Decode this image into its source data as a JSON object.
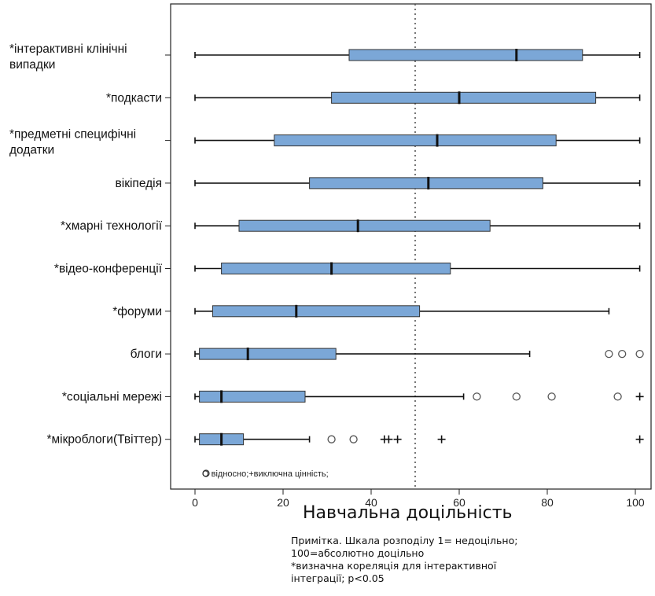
{
  "chart_data": {
    "type": "boxplot",
    "orientation": "horizontal",
    "xlabel": "Навчальна доцільність",
    "xlim": [
      -5,
      104
    ],
    "xticks": [
      0,
      20,
      40,
      60,
      80,
      100
    ],
    "xtick_labels": [
      "0",
      "20",
      "40",
      "60",
      "80",
      "100"
    ],
    "reference_line": {
      "x": 50,
      "style": "dotted"
    },
    "box_color": "#7ba7d7",
    "box_edge_color": "#333333",
    "legend_note": "O відносно;+виключна цінність;",
    "categories": [
      {
        "label_lines": [
          "*інтерактивні клінічні",
          "випадки"
        ],
        "min": 0,
        "q1": 35,
        "median": 73,
        "q3": 88,
        "max": 101,
        "outliers": [],
        "extremes": []
      },
      {
        "label_lines": [
          "*подкасти"
        ],
        "min": 0,
        "q1": 31,
        "median": 60,
        "q3": 91,
        "max": 101,
        "outliers": [],
        "extremes": []
      },
      {
        "label_lines": [
          "*предметні специфічні",
          "додатки"
        ],
        "min": 0,
        "q1": 18,
        "median": 55,
        "q3": 82,
        "max": 101,
        "outliers": [],
        "extremes": []
      },
      {
        "label_lines": [
          "вікіпедія"
        ],
        "min": 0,
        "q1": 26,
        "median": 53,
        "q3": 79,
        "max": 101,
        "outliers": [],
        "extremes": []
      },
      {
        "label_lines": [
          "*хмарні технології"
        ],
        "min": 0,
        "q1": 10,
        "median": 37,
        "q3": 67,
        "max": 101,
        "outliers": [],
        "extremes": []
      },
      {
        "label_lines": [
          "*відео-конференції"
        ],
        "min": 0,
        "q1": 6,
        "median": 31,
        "q3": 58,
        "max": 101,
        "outliers": [],
        "extremes": []
      },
      {
        "label_lines": [
          "*форуми"
        ],
        "min": 0,
        "q1": 4,
        "median": 23,
        "q3": 51,
        "max": 94,
        "outliers": [],
        "extremes": []
      },
      {
        "label_lines": [
          "блоги"
        ],
        "min": 0,
        "q1": 1,
        "median": 12,
        "q3": 32,
        "max": 76,
        "outliers": [
          94,
          97,
          101
        ],
        "extremes": []
      },
      {
        "label_lines": [
          "*соціальні мережі"
        ],
        "min": 0,
        "q1": 1,
        "median": 6,
        "q3": 25,
        "max": 61,
        "outliers": [
          64,
          73,
          81,
          96
        ],
        "extremes": [
          101
        ]
      },
      {
        "label_lines": [
          "*мікроблоги(Твіттер)"
        ],
        "min": 0,
        "q1": 1,
        "median": 6,
        "q3": 11,
        "max": 26,
        "outliers": [
          31,
          36
        ],
        "extremes": [
          43,
          44,
          46,
          56,
          101
        ]
      }
    ]
  },
  "notes": [
    "Примітка. Шкала розподілу 1= недоцільно;",
    "100=абсолютно доцільно",
    "*визначна кореляція для інтерактивної",
    "інтеграції; p<0.05"
  ]
}
